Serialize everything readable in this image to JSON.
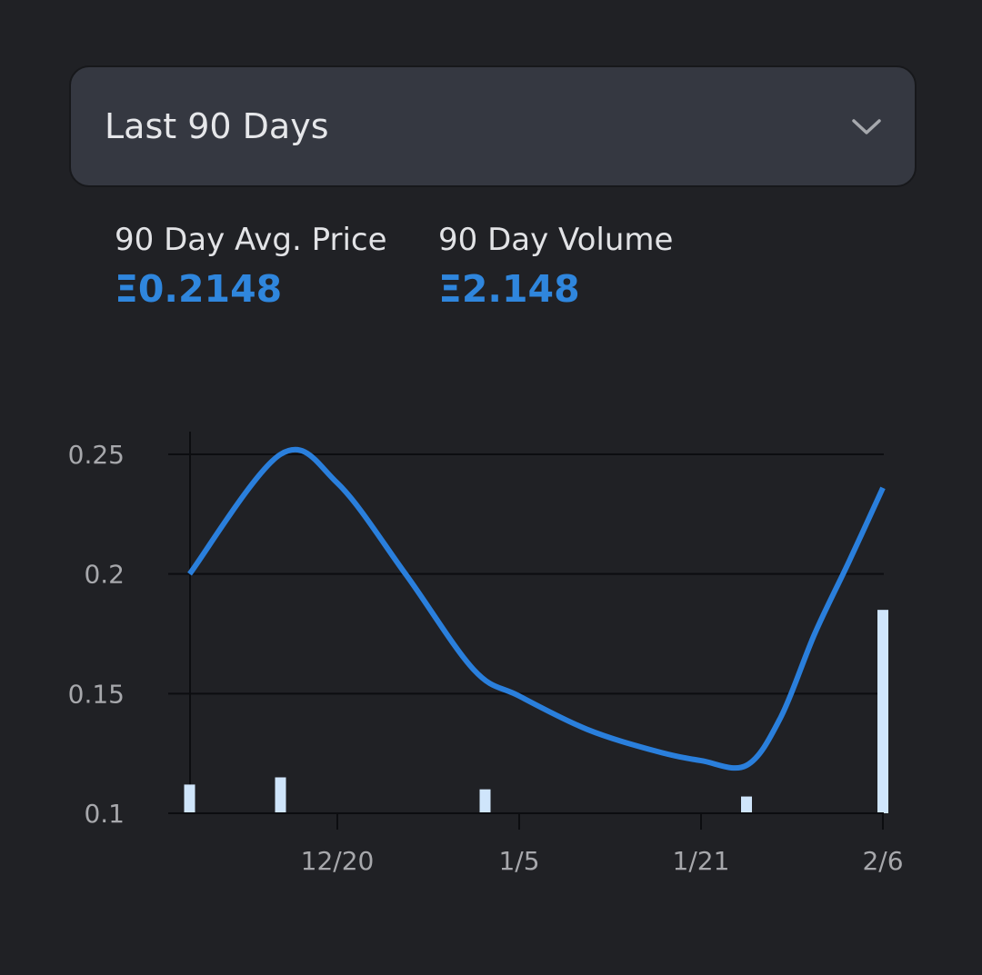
{
  "selector": {
    "label": "Last 90 Days",
    "icon": "chevron-down-icon"
  },
  "stats": {
    "avg_price_label": "90 Day Avg. Price",
    "avg_price_value": "Ξ0.2148",
    "volume_label": "90 Day Volume",
    "volume_value": "Ξ2.148"
  },
  "colors": {
    "background": "#202125",
    "accent": "#2f86dd",
    "line": "#2a7fdc",
    "bar": "#cfe5fb",
    "grid": "#0c0d10"
  },
  "chart_data": {
    "type": "line",
    "x_ticks": [
      "12/20",
      "1/5",
      "1/21",
      "2/6"
    ],
    "y_ticks": [
      "0.25",
      "0.2",
      "0.15",
      "0.1"
    ],
    "ylim": [
      0.1,
      0.25
    ],
    "grid": true,
    "series": [
      {
        "kind": "line",
        "points": [
          {
            "x": "2024-12-07",
            "y": 0.2
          },
          {
            "x": "2024-12-15",
            "y": 0.25
          },
          {
            "x": "2024-12-20",
            "y": 0.238
          },
          {
            "x": "2024-12-26",
            "y": 0.2
          },
          {
            "x": "2025-01-01",
            "y": 0.16
          },
          {
            "x": "2025-01-05",
            "y": 0.149
          },
          {
            "x": "2025-01-11",
            "y": 0.135
          },
          {
            "x": "2025-01-17",
            "y": 0.126
          },
          {
            "x": "2025-01-21",
            "y": 0.122
          },
          {
            "x": "2025-01-25",
            "y": 0.12
          },
          {
            "x": "2025-01-28",
            "y": 0.14
          },
          {
            "x": "2025-01-31",
            "y": 0.175
          },
          {
            "x": "2025-02-03",
            "y": 0.205
          },
          {
            "x": "2025-02-06",
            "y": 0.236
          }
        ]
      },
      {
        "kind": "bar",
        "points": [
          {
            "x": "2024-12-07",
            "y": 0.112
          },
          {
            "x": "2024-12-15",
            "y": 0.115
          },
          {
            "x": "2025-01-02",
            "y": 0.11
          },
          {
            "x": "2025-01-25",
            "y": 0.107
          },
          {
            "x": "2025-02-06",
            "y": 0.185
          }
        ]
      }
    ]
  }
}
